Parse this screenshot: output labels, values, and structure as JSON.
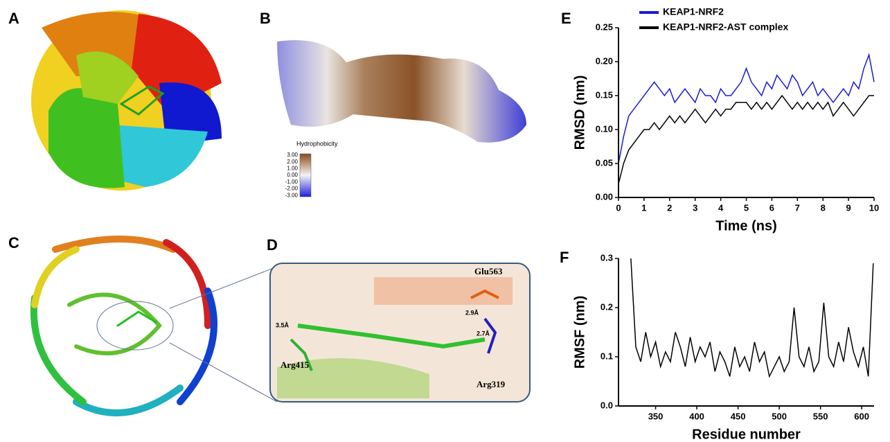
{
  "panel_labels": [
    "A",
    "B",
    "C",
    "D",
    "E",
    "F"
  ],
  "hydrophobicity": {
    "title": "Hydrophobicity",
    "ticks": [
      "3.00",
      "2.00",
      "1.00",
      "0.00",
      "-1.00",
      "-2.00",
      "-3.00"
    ]
  },
  "panel_d": {
    "residues": [
      "Glu563",
      "Arg415",
      "Arg319"
    ],
    "distances": [
      "3.5Å",
      "2.9Å",
      "2.7Å"
    ]
  },
  "chart_data": [
    {
      "type": "line",
      "xlabel": "Time (ns)",
      "ylabel": "RMSD (nm)",
      "legend": "top-left",
      "x": [
        0,
        0.2,
        0.4,
        0.6,
        0.8,
        1,
        1.2,
        1.4,
        1.6,
        1.8,
        2,
        2.2,
        2.4,
        2.6,
        2.8,
        3,
        3.2,
        3.4,
        3.6,
        3.8,
        4,
        4.2,
        4.4,
        4.6,
        4.8,
        5,
        5.2,
        5.4,
        5.6,
        5.8,
        6,
        6.2,
        6.4,
        6.6,
        6.8,
        7,
        7.2,
        7.4,
        7.6,
        7.8,
        8,
        8.2,
        8.4,
        8.6,
        8.8,
        9,
        9.2,
        9.4,
        9.6,
        9.8,
        10
      ],
      "series": [
        {
          "name": "KEAP1-NRF2",
          "color": "#1a1ad6",
          "values": [
            0.05,
            0.09,
            0.12,
            0.13,
            0.14,
            0.15,
            0.16,
            0.17,
            0.16,
            0.15,
            0.16,
            0.14,
            0.15,
            0.16,
            0.15,
            0.14,
            0.16,
            0.15,
            0.15,
            0.14,
            0.16,
            0.15,
            0.15,
            0.16,
            0.17,
            0.19,
            0.17,
            0.16,
            0.15,
            0.17,
            0.16,
            0.18,
            0.17,
            0.16,
            0.18,
            0.17,
            0.15,
            0.16,
            0.17,
            0.15,
            0.16,
            0.15,
            0.14,
            0.15,
            0.16,
            0.15,
            0.17,
            0.16,
            0.19,
            0.21,
            0.17
          ]
        },
        {
          "name": "KEAP1-NRF2-AST complex",
          "color": "#000000",
          "values": [
            0.02,
            0.05,
            0.07,
            0.08,
            0.09,
            0.1,
            0.1,
            0.11,
            0.1,
            0.11,
            0.12,
            0.11,
            0.12,
            0.11,
            0.12,
            0.13,
            0.12,
            0.11,
            0.12,
            0.13,
            0.12,
            0.13,
            0.13,
            0.14,
            0.14,
            0.14,
            0.13,
            0.14,
            0.13,
            0.14,
            0.13,
            0.14,
            0.15,
            0.14,
            0.13,
            0.14,
            0.13,
            0.14,
            0.13,
            0.14,
            0.13,
            0.14,
            0.12,
            0.13,
            0.14,
            0.13,
            0.12,
            0.13,
            0.14,
            0.15,
            0.15
          ]
        }
      ],
      "xlim": [
        0,
        10
      ],
      "xticks": [
        0,
        1,
        2,
        3,
        4,
        5,
        6,
        7,
        8,
        9,
        10
      ],
      "ylim": [
        0,
        0.25
      ],
      "yticks": [
        {
          "value": 0,
          "label": "0.00"
        },
        0.05,
        {
          "value": 0.1,
          "label": "0.10"
        },
        0.15,
        {
          "value": 0.2,
          "label": "0.20"
        },
        0.25
      ]
    },
    {
      "type": "line",
      "xlabel": "Residue number",
      "ylabel": "RMSF (nm)",
      "x": [
        320,
        326,
        332,
        338,
        344,
        350,
        356,
        362,
        368,
        374,
        380,
        386,
        392,
        398,
        404,
        410,
        416,
        422,
        428,
        434,
        440,
        446,
        452,
        458,
        464,
        470,
        476,
        482,
        488,
        494,
        500,
        506,
        512,
        518,
        524,
        530,
        536,
        542,
        548,
        554,
        560,
        566,
        572,
        578,
        584,
        590,
        596,
        602,
        608,
        614
      ],
      "series": [
        {
          "color": "#000000",
          "values": [
            0.3,
            0.12,
            0.09,
            0.15,
            0.1,
            0.13,
            0.08,
            0.11,
            0.09,
            0.15,
            0.12,
            0.08,
            0.14,
            0.09,
            0.12,
            0.1,
            0.13,
            0.07,
            0.11,
            0.09,
            0.06,
            0.12,
            0.08,
            0.1,
            0.07,
            0.13,
            0.09,
            0.11,
            0.06,
            0.08,
            0.1,
            0.07,
            0.09,
            0.2,
            0.1,
            0.08,
            0.12,
            0.07,
            0.09,
            0.21,
            0.1,
            0.08,
            0.13,
            0.09,
            0.16,
            0.11,
            0.08,
            0.12,
            0.06,
            0.29
          ]
        }
      ],
      "xlim": [
        305,
        615
      ],
      "xticks": [
        350,
        400,
        450,
        500,
        550,
        600
      ],
      "ylim": [
        0,
        0.3
      ],
      "yticks": [
        {
          "value": 0,
          "label": "0.0"
        },
        0.1,
        0.2,
        0.3
      ]
    }
  ]
}
